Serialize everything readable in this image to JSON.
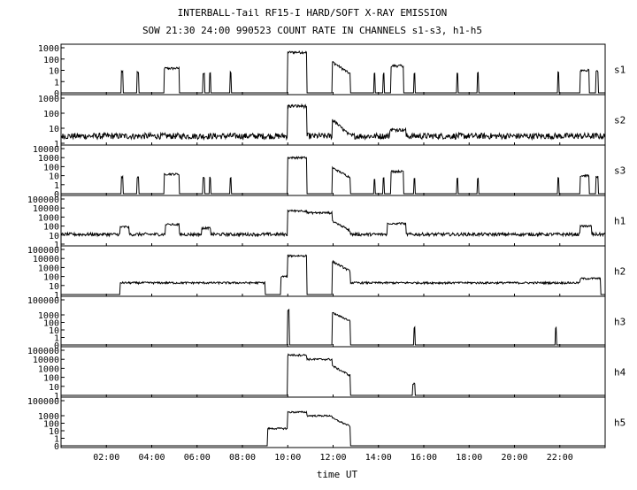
{
  "chart_data": {
    "type": "line",
    "title": "INTERBALL-Tail RF15-I HARD/SOFT X-RAY EMISSION",
    "subtitle": "SOW 21:30 24:00 990523  COUNT RATE IN CHANNELS s1-s3, h1-h5",
    "xlabel": "time UT",
    "x_tick_labels": [
      "02:00",
      "04:00",
      "06:00",
      "08:00",
      "10:00",
      "12:00",
      "14:00",
      "16:00",
      "18:00",
      "20:00",
      "22:00"
    ],
    "x_ticks_hours": [
      2,
      4,
      6,
      8,
      10,
      12,
      14,
      16,
      18,
      20,
      22
    ],
    "xlim_hours": [
      0,
      24
    ],
    "y_scale": "log",
    "grid": false,
    "panels": [
      {
        "name": "s1",
        "ylim": [
          0.1,
          1000
        ],
        "y_tick_labels": [
          "1000",
          "100",
          "10",
          "1",
          "0"
        ],
        "y_tick_values": [
          1000,
          100,
          10,
          1,
          0.1
        ],
        "baseline": 0.1,
        "noise_factor": 1.0,
        "events": [
          {
            "start": 2.65,
            "end": 2.72,
            "level": 8
          },
          {
            "start": 3.35,
            "end": 3.42,
            "level": 6
          },
          {
            "start": 4.55,
            "end": 5.2,
            "level": 15
          },
          {
            "start": 6.25,
            "end": 6.32,
            "level": 6
          },
          {
            "start": 6.55,
            "end": 6.6,
            "level": 6
          },
          {
            "start": 7.45,
            "end": 7.5,
            "level": 6
          },
          {
            "start": 10.0,
            "end": 10.85,
            "level": 400
          },
          {
            "start": 11.95,
            "end": 12.75,
            "level": 60,
            "decay": true
          },
          {
            "start": 13.8,
            "end": 13.85,
            "level": 5
          },
          {
            "start": 14.2,
            "end": 14.25,
            "level": 5
          },
          {
            "start": 14.55,
            "end": 15.1,
            "level": 25
          },
          {
            "start": 15.55,
            "end": 15.6,
            "level": 5
          },
          {
            "start": 17.45,
            "end": 17.5,
            "level": 5
          },
          {
            "start": 18.35,
            "end": 18.4,
            "level": 6
          },
          {
            "start": 21.9,
            "end": 21.95,
            "level": 6
          },
          {
            "start": 22.9,
            "end": 23.3,
            "level": 10
          },
          {
            "start": 23.6,
            "end": 23.7,
            "level": 8
          }
        ]
      },
      {
        "name": "s2",
        "ylim": [
          1,
          1000
        ],
        "y_tick_labels": [
          "1000",
          "100",
          "10",
          "1"
        ],
        "y_tick_values": [
          1000,
          100,
          10,
          1
        ],
        "baseline": 3,
        "noise_factor": 1.6,
        "events": [
          {
            "start": 10.0,
            "end": 10.85,
            "level": 300
          },
          {
            "start": 11.95,
            "end": 12.75,
            "level": 40,
            "decay": true
          },
          {
            "start": 14.5,
            "end": 15.2,
            "level": 8
          }
        ]
      },
      {
        "name": "s3",
        "ylim": [
          0.1,
          10000
        ],
        "y_tick_labels": [
          "10000",
          "1000",
          "100",
          "10",
          "1",
          "0"
        ],
        "y_tick_values": [
          10000,
          1000,
          100,
          10,
          1,
          0.1
        ],
        "baseline": 0.1,
        "noise_factor": 1.0,
        "events": [
          {
            "start": 2.65,
            "end": 2.72,
            "level": 8
          },
          {
            "start": 3.35,
            "end": 3.42,
            "level": 6
          },
          {
            "start": 4.55,
            "end": 5.2,
            "level": 15
          },
          {
            "start": 6.25,
            "end": 6.32,
            "level": 6
          },
          {
            "start": 6.55,
            "end": 6.6,
            "level": 6
          },
          {
            "start": 7.45,
            "end": 7.5,
            "level": 6
          },
          {
            "start": 10.0,
            "end": 10.85,
            "level": 1000
          },
          {
            "start": 11.95,
            "end": 12.75,
            "level": 80,
            "decay": true
          },
          {
            "start": 13.8,
            "end": 13.85,
            "level": 5
          },
          {
            "start": 14.2,
            "end": 14.25,
            "level": 5
          },
          {
            "start": 14.55,
            "end": 15.1,
            "level": 30
          },
          {
            "start": 15.55,
            "end": 15.6,
            "level": 5
          },
          {
            "start": 17.45,
            "end": 17.5,
            "level": 5
          },
          {
            "start": 18.35,
            "end": 18.4,
            "level": 6
          },
          {
            "start": 21.9,
            "end": 21.95,
            "level": 6
          },
          {
            "start": 22.9,
            "end": 23.3,
            "level": 10
          },
          {
            "start": 23.6,
            "end": 23.7,
            "level": 8
          }
        ]
      },
      {
        "name": "h1",
        "ylim": [
          1,
          100000
        ],
        "y_tick_labels": [
          "100000",
          "10000",
          "1000",
          "100",
          "10",
          "1"
        ],
        "y_tick_values": [
          100000,
          10000,
          1000,
          100,
          10,
          1
        ],
        "baseline": 12,
        "noise_factor": 1.5,
        "events": [
          {
            "start": 2.6,
            "end": 3.0,
            "level": 80
          },
          {
            "start": 4.6,
            "end": 5.2,
            "level": 150
          },
          {
            "start": 6.2,
            "end": 6.6,
            "level": 60
          },
          {
            "start": 10.0,
            "end": 10.85,
            "level": 5000
          },
          {
            "start": 10.85,
            "end": 11.95,
            "level": 3000
          },
          {
            "start": 11.95,
            "end": 12.75,
            "level": 400,
            "decay": true
          },
          {
            "start": 14.4,
            "end": 15.2,
            "level": 200
          },
          {
            "start": 22.9,
            "end": 23.4,
            "level": 100
          }
        ]
      },
      {
        "name": "h2",
        "ylim": [
          1,
          100000
        ],
        "y_tick_labels": [
          "100000",
          "10000",
          "1000",
          "100",
          "10",
          "1"
        ],
        "y_tick_values": [
          100000,
          10000,
          1000,
          100,
          10,
          1
        ],
        "baseline": 1,
        "noise_factor": 1.0,
        "events": [
          {
            "start": 2.6,
            "end": 9.0,
            "level": 20
          },
          {
            "start": 9.7,
            "end": 10.0,
            "level": 100
          },
          {
            "start": 10.0,
            "end": 10.85,
            "level": 20000
          },
          {
            "start": 11.95,
            "end": 12.75,
            "level": 5000,
            "decay": true
          },
          {
            "start": 12.75,
            "end": 22.9,
            "level": 20
          },
          {
            "start": 22.9,
            "end": 23.8,
            "level": 60
          }
        ]
      },
      {
        "name": "h3",
        "ylim": [
          0.1,
          100000
        ],
        "y_tick_labels": [
          "100000",
          "1000",
          "100",
          "10",
          "1",
          "0"
        ],
        "y_tick_values": [
          100000,
          1000,
          100,
          10,
          1,
          0.1
        ],
        "baseline": 0.1,
        "noise_factor": 1.0,
        "events": [
          {
            "start": 10.0,
            "end": 10.06,
            "level": 5000
          },
          {
            "start": 11.95,
            "end": 12.75,
            "level": 2000,
            "decay": true
          },
          {
            "start": 15.55,
            "end": 15.6,
            "level": 20
          },
          {
            "start": 21.8,
            "end": 21.85,
            "level": 20
          }
        ]
      },
      {
        "name": "h4",
        "ylim": [
          1,
          100000
        ],
        "y_tick_labels": [
          "100000",
          "10000",
          "1000",
          "100",
          "10",
          "1"
        ],
        "y_tick_values": [
          100000,
          10000,
          1000,
          100,
          10,
          1
        ],
        "baseline": 1,
        "noise_factor": 1.0,
        "events": [
          {
            "start": 10.0,
            "end": 10.85,
            "level": 30000
          },
          {
            "start": 10.85,
            "end": 11.95,
            "level": 10000
          },
          {
            "start": 11.95,
            "end": 12.75,
            "level": 2000,
            "decay": true
          },
          {
            "start": 15.5,
            "end": 15.6,
            "level": 20
          }
        ]
      },
      {
        "name": "h5",
        "ylim": [
          0.1,
          100000
        ],
        "y_tick_labels": [
          "100000",
          "1000",
          "100",
          "10",
          "1",
          "0"
        ],
        "y_tick_values": [
          100000,
          1000,
          100,
          10,
          1,
          0.1
        ],
        "baseline": 0.1,
        "noise_factor": 1.0,
        "events": [
          {
            "start": 9.1,
            "end": 10.0,
            "level": 20
          },
          {
            "start": 10.0,
            "end": 10.85,
            "level": 3000
          },
          {
            "start": 10.85,
            "end": 11.95,
            "level": 1000
          },
          {
            "start": 11.95,
            "end": 12.75,
            "level": 500,
            "decay": true
          }
        ]
      }
    ]
  }
}
